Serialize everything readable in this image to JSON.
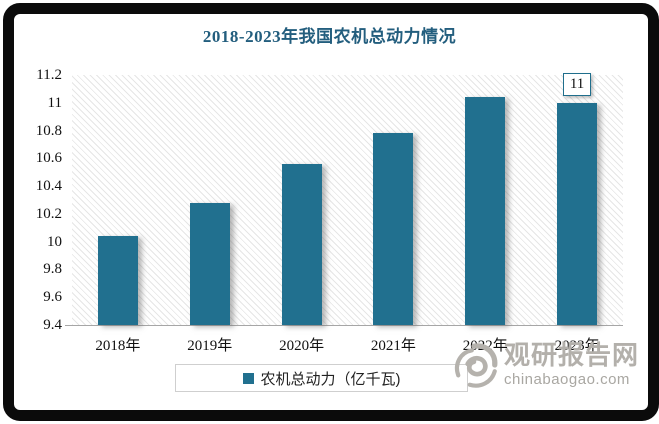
{
  "title": "2018-2023年我国农机总动力情况",
  "chart_data": {
    "type": "bar",
    "title": "2018-2023年我国农机总动力情况",
    "categories": [
      "2018年",
      "2019年",
      "2020年",
      "2021年",
      "2022年",
      "2023年"
    ],
    "series": [
      {
        "name": "农机总动力（亿千瓦)",
        "values": [
          10.04,
          10.28,
          10.56,
          10.78,
          11.04,
          11
        ]
      }
    ],
    "ylim": [
      9.4,
      11.2
    ],
    "ytick_labels": [
      "11.2",
      "11",
      "10.8",
      "10.6",
      "10.4",
      "10.2",
      "10",
      "9.8",
      "9.6",
      "9.4"
    ],
    "xlabel": "",
    "ylabel": "",
    "grid": false,
    "plot_background": "diagonal-hatch",
    "legend_position": "bottom",
    "annotations": [
      {
        "category_index": 5,
        "text": "11"
      }
    ]
  },
  "legend": {
    "label": "农机总动力（亿千瓦)"
  },
  "watermark": {
    "brand": "观研报告网",
    "domain": "chinabaogao.com"
  },
  "colors": {
    "title": "#235e7e",
    "bar": "#21708f",
    "annotation_border": "#1f6e8c",
    "frame": "#0b0b0b",
    "axis_line": "#a6a6a6",
    "watermark_brand": "#b3b0ab",
    "watermark_domain": "#a9a7a2"
  }
}
